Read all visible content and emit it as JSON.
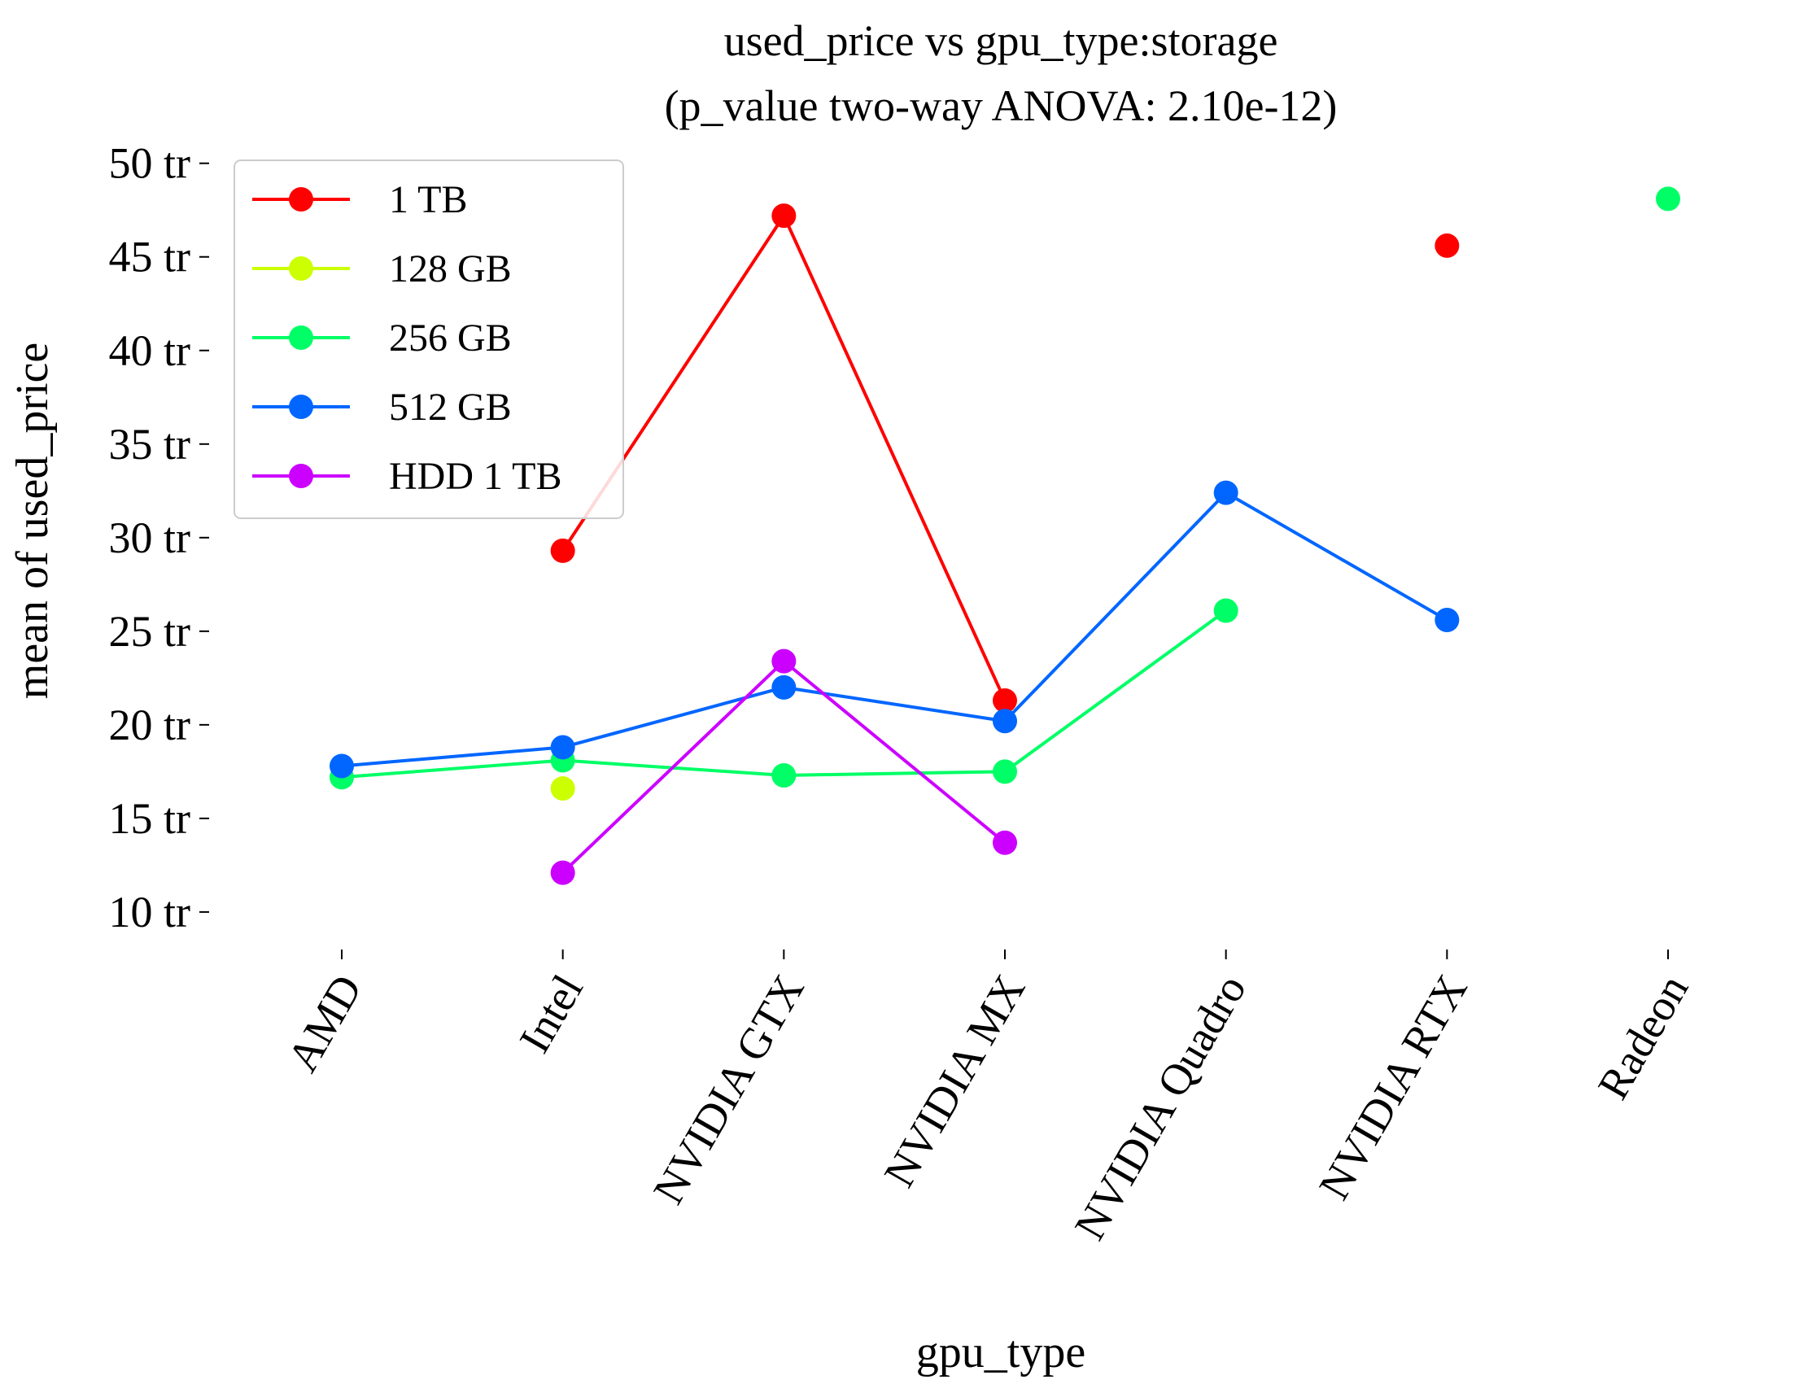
{
  "chart_data": {
    "type": "line",
    "title": "used_price vs gpu_type:storage",
    "subtitle": "(p_value two-way ANOVA: 2.10e-12)",
    "xlabel": "gpu_type",
    "ylabel": "mean of used_price",
    "categories": [
      "AMD",
      "Intel",
      "NVIDIA GTX",
      "NVIDIA MX",
      "NVIDIA Quadro",
      "NVIDIA RTX",
      "Radeon"
    ],
    "y_ticks": [
      {
        "value": 10,
        "label": "10 tr"
      },
      {
        "value": 15,
        "label": "15 tr"
      },
      {
        "value": 20,
        "label": "20 tr"
      },
      {
        "value": 25,
        "label": "25 tr"
      },
      {
        "value": 30,
        "label": "30 tr"
      },
      {
        "value": 35,
        "label": "35 tr"
      },
      {
        "value": 40,
        "label": "40 tr"
      },
      {
        "value": 45,
        "label": "45 tr"
      },
      {
        "value": 50,
        "label": "50 tr"
      }
    ],
    "ylim": [
      8.3,
      50.9
    ],
    "grid": false,
    "legend_position": "top-left",
    "series": [
      {
        "name": "1 TB",
        "color": "#ff0000",
        "values": [
          null,
          29.3,
          47.2,
          21.3,
          null,
          45.6,
          null
        ]
      },
      {
        "name": "128 GB",
        "color": "#ccff00",
        "values": [
          null,
          16.6,
          null,
          null,
          null,
          null,
          null
        ]
      },
      {
        "name": "256 GB",
        "color": "#00ff66",
        "values": [
          17.2,
          18.1,
          17.3,
          17.5,
          26.1,
          null,
          48.1
        ]
      },
      {
        "name": "512 GB",
        "color": "#0066ff",
        "values": [
          17.8,
          18.8,
          22.0,
          20.2,
          32.4,
          25.6,
          null
        ]
      },
      {
        "name": "HDD 1 TB",
        "color": "#cc00ff",
        "values": [
          null,
          12.1,
          23.4,
          13.7,
          null,
          null,
          null
        ]
      }
    ]
  }
}
